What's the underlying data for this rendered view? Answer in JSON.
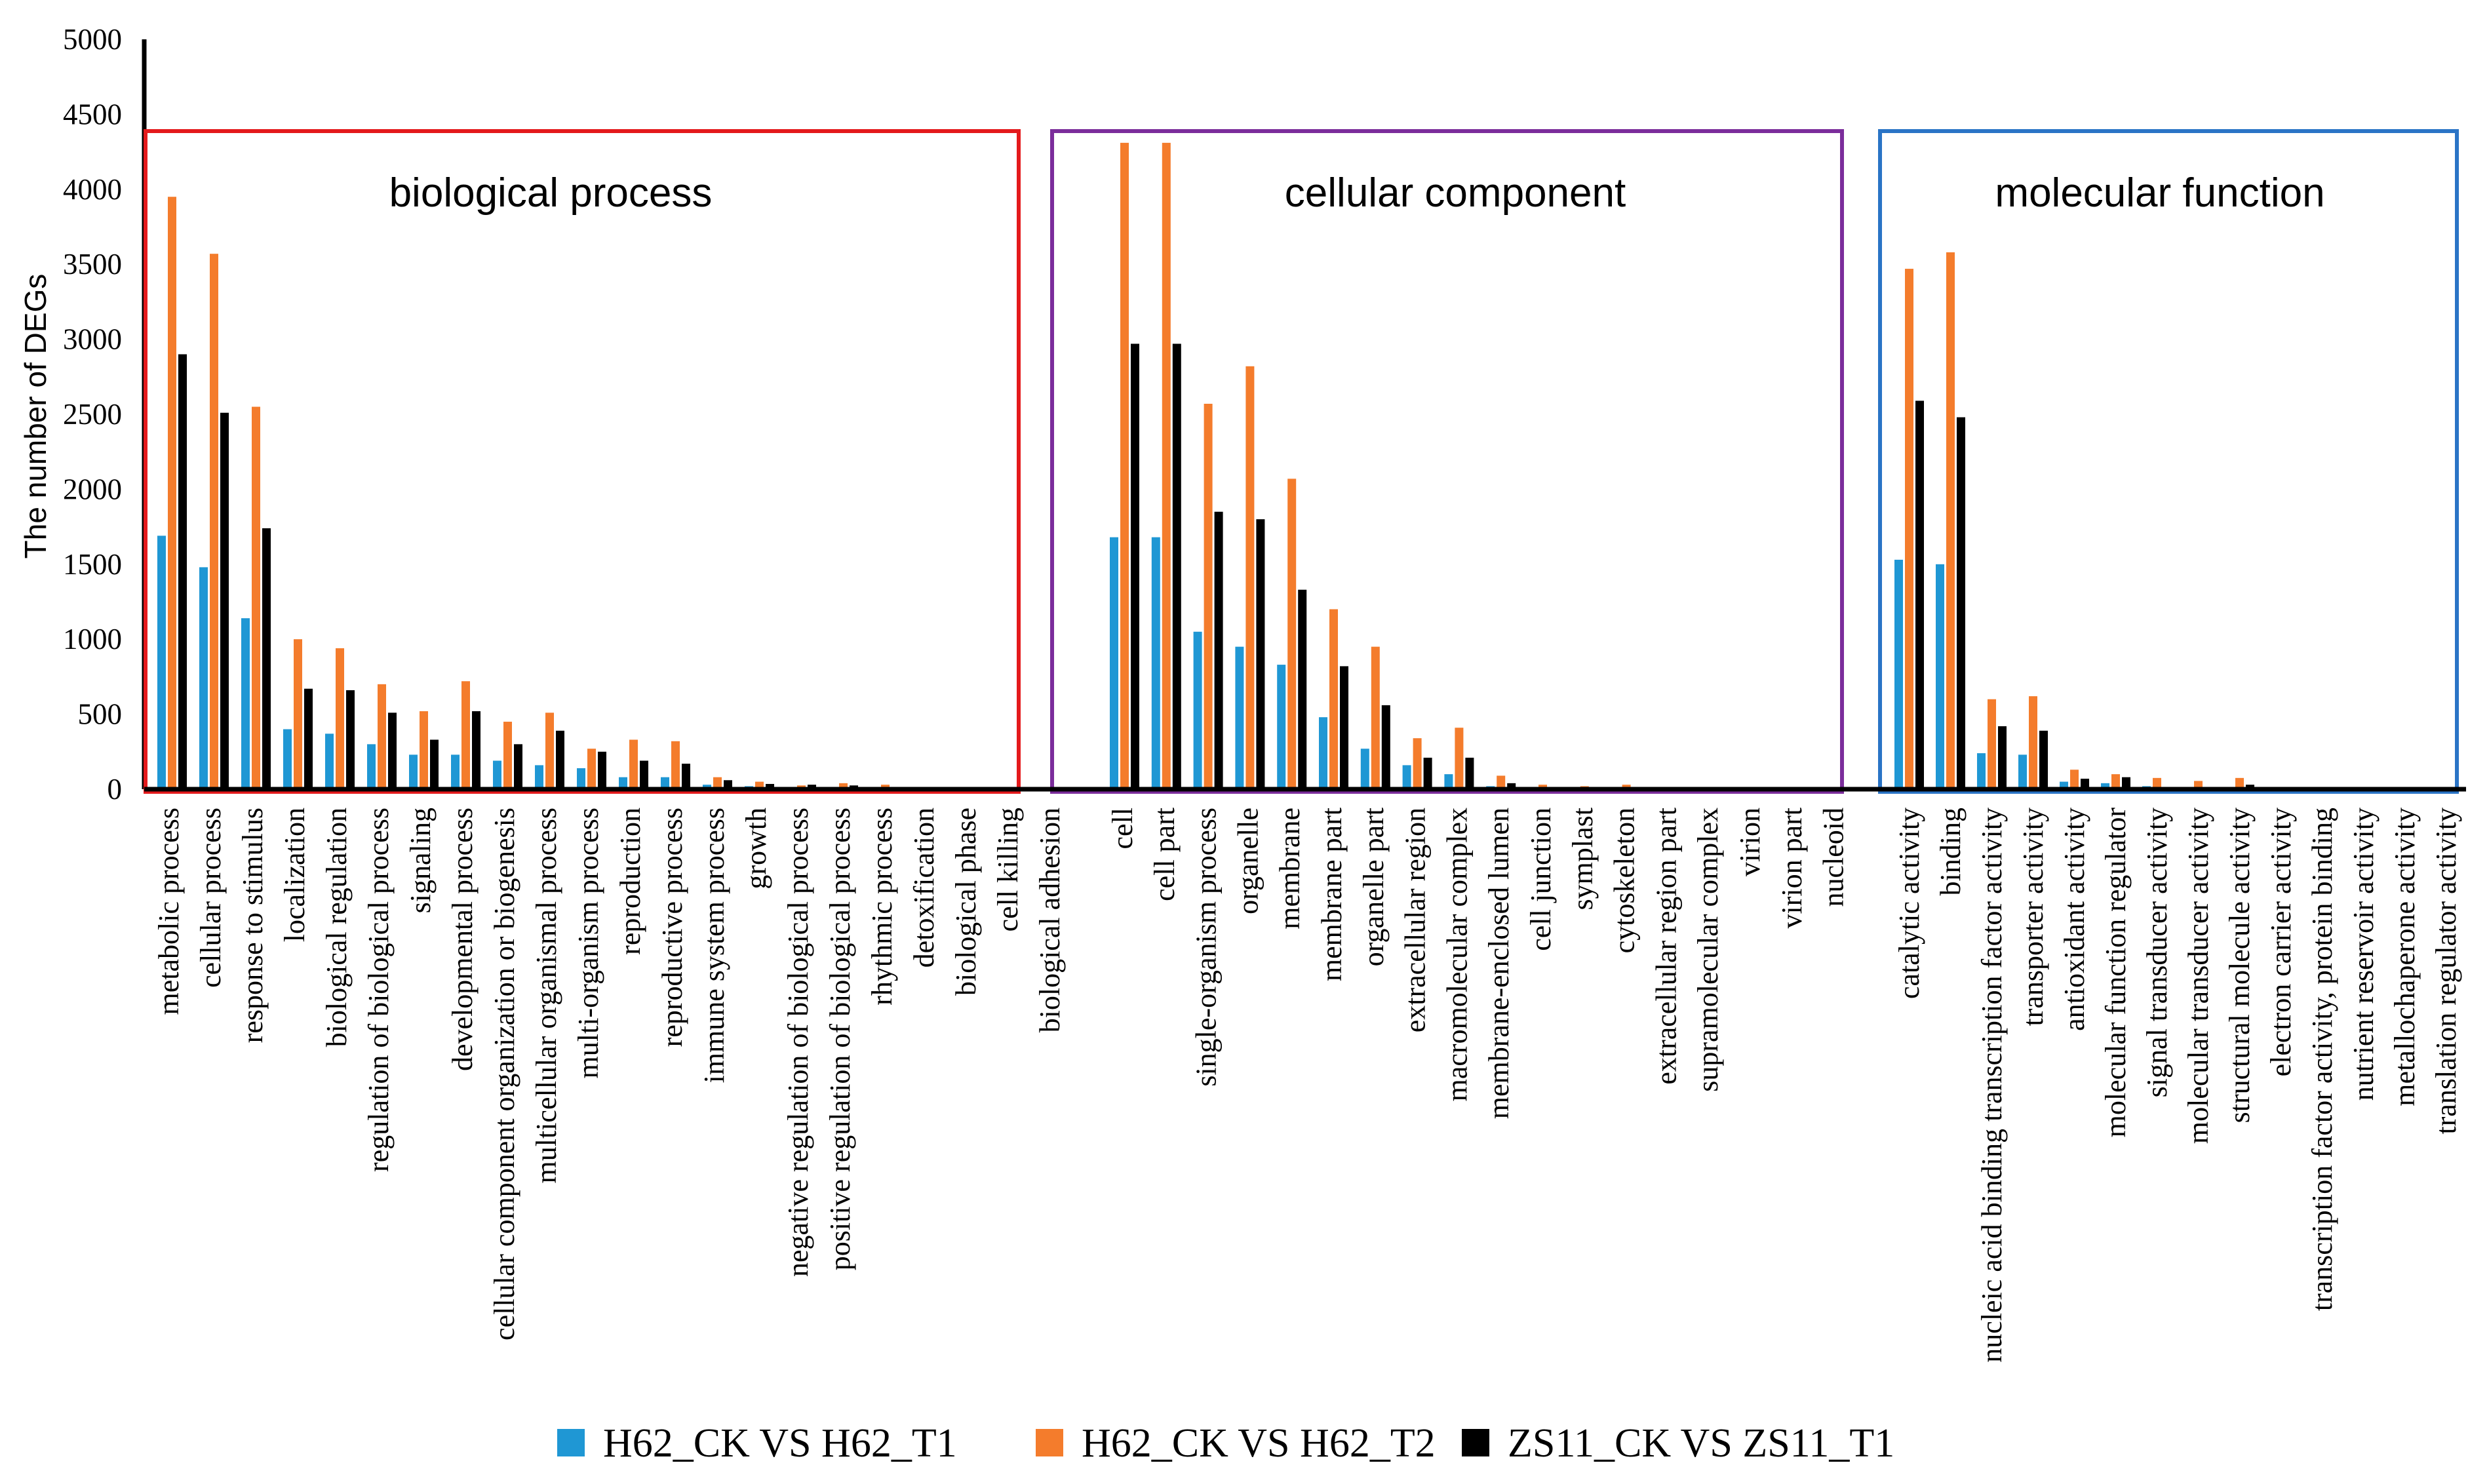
{
  "chart_data": {
    "type": "bar",
    "ylabel": "The number of DEGs",
    "ylim": [
      0,
      5000
    ],
    "yticks": [
      0,
      500,
      1000,
      1500,
      2000,
      2500,
      3000,
      3500,
      4000,
      4500,
      5000
    ],
    "colors": {
      "H62_CK VS H62_T1": "#1f97d4",
      "H62_CK VS H62_T2": "#f47c2c",
      "ZS11_CK VS ZS11_T1": "#000000",
      "biological process": "#e41a1c",
      "cellular component": "#7b2d9b",
      "molecular function": "#2a74c6"
    },
    "series_names": [
      "H62_CK VS H62_T1",
      "H62_CK VS H62_T2",
      "ZS11_CK VS ZS11_T1"
    ],
    "groups": [
      {
        "name": "biological process",
        "categories": [
          {
            "label": "metabolic process",
            "values": [
              1690,
              3950,
              2900
            ]
          },
          {
            "label": "cellular process",
            "values": [
              1480,
              3570,
              2510
            ]
          },
          {
            "label": "response to stimulus",
            "values": [
              1140,
              2550,
              1740
            ]
          },
          {
            "label": "localization",
            "values": [
              400,
              1000,
              670
            ]
          },
          {
            "label": "biological regulation",
            "values": [
              370,
              940,
              660
            ]
          },
          {
            "label": "regulation of biological process",
            "values": [
              300,
              700,
              510
            ]
          },
          {
            "label": "signaling",
            "values": [
              230,
              520,
              330
            ]
          },
          {
            "label": "developmental process",
            "values": [
              230,
              720,
              520
            ]
          },
          {
            "label": "cellular component organization or biogenesis",
            "values": [
              190,
              450,
              300
            ]
          },
          {
            "label": "multicellular organismal process",
            "values": [
              160,
              510,
              390
            ]
          },
          {
            "label": "multi-organism process",
            "values": [
              140,
              270,
              250
            ]
          },
          {
            "label": "reproduction",
            "values": [
              80,
              330,
              190
            ]
          },
          {
            "label": "reproductive process",
            "values": [
              80,
              320,
              170
            ]
          },
          {
            "label": "immune system process",
            "values": [
              30,
              80,
              60
            ]
          },
          {
            "label": "growth",
            "values": [
              20,
              50,
              35
            ]
          },
          {
            "label": "negative regulation of biological process",
            "values": [
              10,
              25,
              30
            ]
          },
          {
            "label": "positive regulation of biological process",
            "values": [
              10,
              40,
              25
            ]
          },
          {
            "label": "rhythmic process",
            "values": [
              5,
              30,
              10
            ]
          },
          {
            "label": "detoxification",
            "values": [
              2,
              5,
              3
            ]
          },
          {
            "label": "biological phase",
            "values": [
              1,
              3,
              2
            ]
          },
          {
            "label": "cell killing",
            "values": [
              1,
              2,
              1
            ]
          },
          {
            "label": "biological adhesion",
            "values": [
              1,
              2,
              1
            ]
          }
        ]
      },
      {
        "name": "cellular component",
        "categories": [
          {
            "label": "cell",
            "values": [
              1680,
              4310,
              2970
            ]
          },
          {
            "label": "cell part",
            "values": [
              1680,
              4310,
              2970
            ]
          },
          {
            "label": "single-organism process",
            "values": [
              1050,
              2570,
              1850
            ]
          },
          {
            "label": "organelle",
            "values": [
              950,
              2820,
              1800
            ]
          },
          {
            "label": "membrane",
            "values": [
              830,
              2070,
              1330
            ]
          },
          {
            "label": "membrane part",
            "values": [
              480,
              1200,
              820
            ]
          },
          {
            "label": "organelle part",
            "values": [
              270,
              950,
              560
            ]
          },
          {
            "label": "extracellular region",
            "values": [
              160,
              340,
              210
            ]
          },
          {
            "label": "macromolecular complex",
            "values": [
              100,
              410,
              210
            ]
          },
          {
            "label": "membrane-enclosed lumen",
            "values": [
              20,
              90,
              40
            ]
          },
          {
            "label": "cell junction",
            "values": [
              10,
              30,
              15
            ]
          },
          {
            "label": "symplast",
            "values": [
              10,
              20,
              15
            ]
          },
          {
            "label": "cytoskeleton",
            "values": [
              5,
              30,
              15
            ]
          },
          {
            "label": "extracellular region part",
            "values": [
              3,
              8,
              5
            ]
          },
          {
            "label": "supramolecular complex",
            "values": [
              2,
              5,
              3
            ]
          },
          {
            "label": "virion",
            "values": [
              1,
              2,
              1
            ]
          },
          {
            "label": "virion part",
            "values": [
              1,
              2,
              1
            ]
          },
          {
            "label": "nucleoid",
            "values": [
              1,
              2,
              1
            ]
          }
        ]
      },
      {
        "name": "molecular function",
        "categories": [
          {
            "label": "catalytic activity",
            "values": [
              1530,
              3470,
              2590
            ]
          },
          {
            "label": "binding",
            "values": [
              1500,
              3580,
              2480
            ]
          },
          {
            "label": "nucleic acid binding transcription factor activity",
            "values": [
              240,
              600,
              420
            ]
          },
          {
            "label": "transporter activity",
            "values": [
              230,
              620,
              390
            ]
          },
          {
            "label": "antioxidant activity",
            "values": [
              50,
              130,
              70
            ]
          },
          {
            "label": "molecular function regulator",
            "values": [
              40,
              100,
              80
            ]
          },
          {
            "label": "signal transducer activity",
            "values": [
              20,
              75,
              15
            ]
          },
          {
            "label": "molecular transducer activity",
            "values": [
              10,
              55,
              10
            ]
          },
          {
            "label": "structural molecule activity",
            "values": [
              10,
              75,
              30
            ]
          },
          {
            "label": "electron carrier activity",
            "values": [
              3,
              15,
              5
            ]
          },
          {
            "label": "transcription factor activity, protein binding",
            "values": [
              2,
              10,
              5
            ]
          },
          {
            "label": "nutrient reservoir activity",
            "values": [
              2,
              8,
              4
            ]
          },
          {
            "label": "metallochaperone activity",
            "values": [
              1,
              4,
              2
            ]
          },
          {
            "label": "translation regulator activity",
            "values": [
              1,
              3,
              2
            ]
          }
        ]
      }
    ]
  }
}
